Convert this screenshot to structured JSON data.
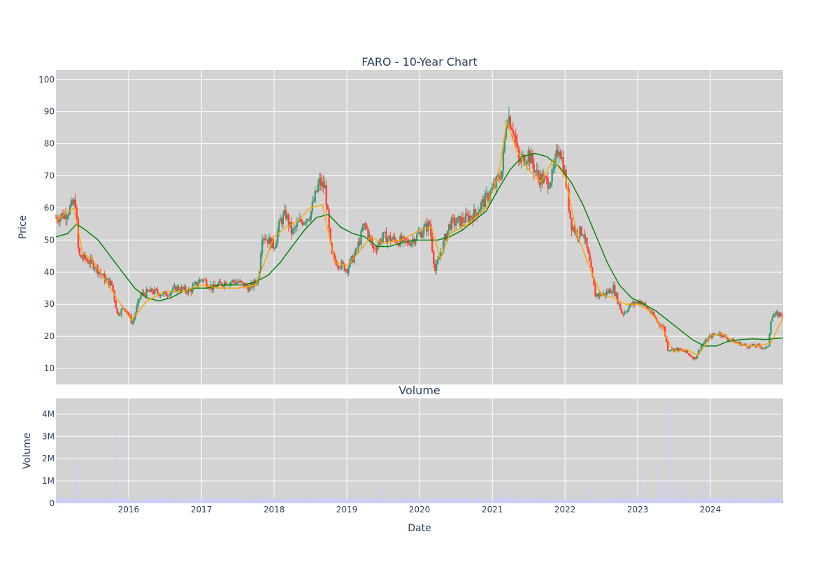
{
  "chart_data": [
    {
      "type": "candlestick",
      "title": "FARO - 10-Year Chart",
      "xlabel": "",
      "ylabel": "Price",
      "xlim": [
        "2015-01-01",
        "2024-12-31"
      ],
      "ylim": [
        5,
        103
      ],
      "x_ticks": [
        "2016",
        "2017",
        "2018",
        "2019",
        "2020",
        "2021",
        "2022",
        "2023",
        "2024"
      ],
      "y_ticks": [
        10,
        20,
        30,
        40,
        50,
        60,
        70,
        80,
        90,
        100
      ],
      "grid": true,
      "colors": {
        "plot_bg": "#d3d3d3",
        "grid": "#ffffff",
        "up": "#3d9970",
        "down": "#ff4136",
        "ma_short": "#ffa500",
        "ma_long": "#008000"
      },
      "series": [
        {
          "kind": "close_price",
          "x": [
            "2015-01-01",
            "2015-02-15",
            "2015-04-10",
            "2015-04-25",
            "2015-06-01",
            "2015-07-15",
            "2015-09-01",
            "2015-10-10",
            "2015-11-05",
            "2015-12-15",
            "2016-01-20",
            "2016-03-01",
            "2016-05-01",
            "2016-07-01",
            "2016-09-01",
            "2016-11-01",
            "2017-01-01",
            "2017-03-01",
            "2017-05-01",
            "2017-07-01",
            "2017-09-01",
            "2017-10-15",
            "2017-11-01",
            "2018-01-01",
            "2018-02-01",
            "2018-03-01",
            "2018-04-01",
            "2018-05-01",
            "2018-07-01",
            "2018-08-15",
            "2018-09-15",
            "2018-10-15",
            "2018-11-15",
            "2019-01-01",
            "2019-02-15",
            "2019-04-01",
            "2019-05-15",
            "2019-07-01",
            "2019-09-01",
            "2019-11-01",
            "2020-01-01",
            "2020-02-20",
            "2020-03-20",
            "2020-04-15",
            "2020-06-01",
            "2020-08-01",
            "2020-10-01",
            "2020-12-01",
            "2021-01-15",
            "2021-02-20",
            "2021-03-15",
            "2021-04-15",
            "2021-05-15",
            "2021-07-01",
            "2021-08-15",
            "2021-10-01",
            "2021-11-01",
            "2021-12-01",
            "2022-01-01",
            "2022-02-01",
            "2022-03-01",
            "2022-04-01",
            "2022-05-01",
            "2022-06-01",
            "2022-07-15",
            "2022-09-01",
            "2022-10-15",
            "2022-12-01",
            "2023-01-15",
            "2023-03-01",
            "2023-04-15",
            "2023-05-10",
            "2023-06-01",
            "2023-07-15",
            "2023-09-01",
            "2023-10-15",
            "2023-11-15",
            "2024-01-01",
            "2024-02-15",
            "2024-04-01",
            "2024-05-15",
            "2024-07-01",
            "2024-09-01",
            "2024-10-15",
            "2024-11-01",
            "2024-12-15"
          ],
          "values": [
            57,
            58,
            62,
            45,
            44,
            42,
            38,
            36,
            27,
            29,
            24,
            33,
            34,
            33,
            35,
            34,
            38,
            35,
            37,
            37,
            35,
            38,
            52,
            48,
            56,
            58,
            52,
            55,
            58,
            68,
            66,
            45,
            43,
            41,
            46,
            55,
            47,
            51,
            50,
            49,
            52,
            55,
            40,
            46,
            55,
            56,
            58,
            63,
            67,
            72,
            90,
            85,
            74,
            77,
            70,
            68,
            70,
            80,
            70,
            55,
            52,
            53,
            44,
            33,
            33,
            35,
            27,
            30,
            31,
            28,
            24,
            23,
            16,
            16,
            15,
            13,
            17,
            20,
            21,
            19,
            18,
            17,
            17,
            16,
            26,
            27
          ]
        },
        {
          "kind": "ma_short",
          "x": [
            "2015-01-01",
            "2015-04-01",
            "2015-05-15",
            "2015-07-01",
            "2015-09-01",
            "2015-11-01",
            "2016-01-15",
            "2016-04-01",
            "2016-07-01",
            "2016-10-01",
            "2017-01-01",
            "2017-04-01",
            "2017-07-01",
            "2017-10-01",
            "2018-01-01",
            "2018-03-01",
            "2018-05-01",
            "2018-07-01",
            "2018-09-01",
            "2018-11-01",
            "2019-01-01",
            "2019-03-01",
            "2019-05-01",
            "2019-07-01",
            "2019-10-01",
            "2020-01-01",
            "2020-03-01",
            "2020-04-15",
            "2020-06-01",
            "2020-09-01",
            "2020-12-01",
            "2021-02-01",
            "2021-03-15",
            "2021-05-01",
            "2021-07-01",
            "2021-09-01",
            "2021-11-01",
            "2022-01-01",
            "2022-03-01",
            "2022-05-01",
            "2022-07-01",
            "2022-09-01",
            "2022-11-01",
            "2023-01-01",
            "2023-03-01",
            "2023-05-01",
            "2023-07-01",
            "2023-09-01",
            "2023-11-01",
            "2024-01-01",
            "2024-03-01",
            "2024-05-01",
            "2024-07-01",
            "2024-09-01",
            "2024-11-01",
            "2024-12-31"
          ],
          "values": [
            56,
            60,
            46,
            44,
            38,
            32,
            25,
            31,
            34,
            34,
            36,
            35,
            35,
            36,
            51,
            54,
            56,
            60,
            61,
            43,
            42,
            46,
            51,
            49,
            50,
            53,
            54,
            44,
            52,
            55,
            60,
            70,
            87,
            78,
            72,
            68,
            75,
            70,
            52,
            42,
            33,
            32,
            30,
            30,
            28,
            23,
            15,
            16,
            14,
            20,
            21,
            18,
            17,
            17,
            18,
            26
          ]
        },
        {
          "kind": "ma_long",
          "x": [
            "2015-01-01",
            "2015-03-01",
            "2015-04-15",
            "2015-06-01",
            "2015-08-01",
            "2015-10-01",
            "2015-12-01",
            "2016-02-01",
            "2016-04-01",
            "2016-06-01",
            "2016-08-01",
            "2016-10-01",
            "2016-12-01",
            "2017-02-01",
            "2017-04-01",
            "2017-06-01",
            "2017-08-01",
            "2017-10-01",
            "2017-12-01",
            "2018-02-01",
            "2018-04-01",
            "2018-06-01",
            "2018-08-01",
            "2018-10-01",
            "2018-12-01",
            "2019-02-01",
            "2019-04-01",
            "2019-06-01",
            "2019-08-01",
            "2019-10-01",
            "2019-12-01",
            "2020-02-01",
            "2020-04-01",
            "2020-06-01",
            "2020-08-01",
            "2020-10-01",
            "2020-12-01",
            "2021-02-01",
            "2021-04-01",
            "2021-06-01",
            "2021-08-01",
            "2021-10-01",
            "2021-12-01",
            "2022-02-01",
            "2022-04-01",
            "2022-06-01",
            "2022-08-01",
            "2022-10-01",
            "2022-12-01",
            "2023-02-01",
            "2023-04-01",
            "2023-06-01",
            "2023-08-01",
            "2023-10-01",
            "2023-12-01",
            "2024-02-01",
            "2024-04-01",
            "2024-06-01",
            "2024-08-01",
            "2024-10-01",
            "2024-12-31"
          ],
          "values": [
            51,
            52,
            55,
            53,
            50,
            45,
            40,
            35,
            32,
            31,
            32,
            34,
            35,
            35,
            36,
            36,
            36,
            37,
            39,
            43,
            48,
            53,
            57,
            58,
            54,
            52,
            51,
            48,
            48,
            49,
            50,
            50,
            50,
            51,
            53,
            56,
            59,
            66,
            72,
            76,
            77,
            76,
            73,
            68,
            61,
            52,
            43,
            36,
            32,
            30,
            28,
            25,
            22,
            19,
            17,
            17,
            18.5,
            19,
            19.2,
            19,
            19.5
          ]
        }
      ]
    },
    {
      "type": "bar",
      "title": "Volume",
      "xlabel": "Date",
      "ylabel": "Volume",
      "xlim": [
        "2015-01-01",
        "2024-12-31"
      ],
      "ylim": [
        0,
        4700000
      ],
      "x_ticks": [
        "2016",
        "2017",
        "2018",
        "2019",
        "2020",
        "2021",
        "2022",
        "2023",
        "2024"
      ],
      "y_ticks": [
        "0",
        "1M",
        "2M",
        "3M",
        "4M"
      ],
      "grid": true,
      "colors": {
        "bar": "#ccccff"
      },
      "spikes": {
        "x": [
          "2015-04-15",
          "2015-04-20",
          "2015-11-01",
          "2015-11-05",
          "2017-10-20",
          "2018-04-15",
          "2019-06-15",
          "2020-06-10",
          "2021-02-10",
          "2022-05-01",
          "2022-11-01",
          "2023-01-15",
          "2023-04-15",
          "2023-05-01",
          "2023-05-10",
          "2023-06-01",
          "2023-06-15",
          "2023-07-01",
          "2023-08-15",
          "2023-11-01",
          "2023-12-01",
          "2024-04-01",
          "2024-11-10"
        ],
        "values": [
          2000000,
          850000,
          3300000,
          700000,
          600000,
          550000,
          700000,
          600000,
          700000,
          700000,
          600000,
          1700000,
          1650000,
          700000,
          900000,
          1000000,
          4600000,
          900000,
          1000000,
          800000,
          1500000,
          1200000,
          650000
        ]
      }
    }
  ]
}
